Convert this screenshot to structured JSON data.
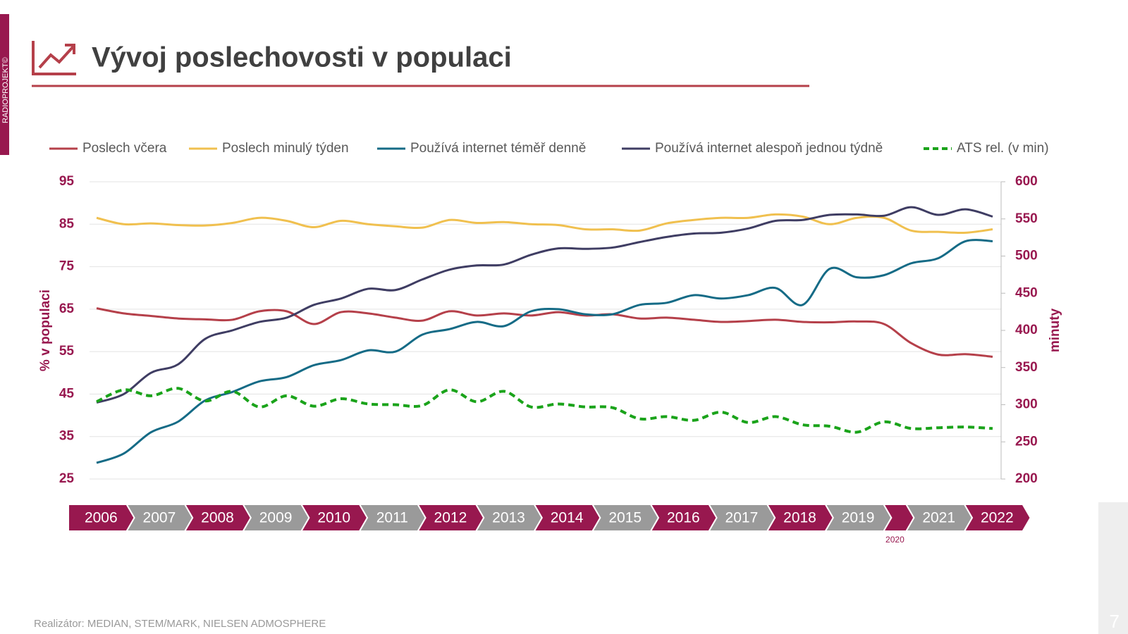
{
  "header": {
    "title": "Vývoj poslechovosti v populaci",
    "brand": "RADIOPROJEKT©",
    "page": "7"
  },
  "footer": "Realizátor: MEDIAN, STEM/MARK, NIELSEN ADMOSPHERE",
  "chart_data": {
    "type": "line",
    "x": [
      2006,
      2006.5,
      2007,
      2007.5,
      2008,
      2008.5,
      2009,
      2009.5,
      2010,
      2010.5,
      2011,
      2011.5,
      2012,
      2012.5,
      2013,
      2013.5,
      2014,
      2014.5,
      2015,
      2015.5,
      2016,
      2016.5,
      2017,
      2017.5,
      2018,
      2018.5,
      2019,
      2019.5,
      2020,
      2020.5,
      2021,
      2021.5,
      2022,
      2022.5
    ],
    "xlim": [
      2006,
      2022.5
    ],
    "timeline": [
      "2006",
      "2007",
      "2008",
      "2009",
      "2010",
      "2011",
      "2012",
      "2013",
      "2014",
      "2015",
      "2016",
      "2017",
      "2018",
      "2019",
      null,
      "2021",
      "2022"
    ],
    "timeline_note": "2020",
    "ylabel": "% v populaci",
    "y2label": "minuty",
    "ylim": [
      25,
      95
    ],
    "yticks": [
      25,
      35,
      45,
      55,
      65,
      75,
      85,
      95
    ],
    "y2lim": [
      200,
      600
    ],
    "y2ticks": [
      200,
      250,
      300,
      350,
      400,
      450,
      500,
      550,
      600
    ],
    "grid": true,
    "series": [
      {
        "name": "Poslech včera",
        "color": "#b5404a",
        "values": [
          65.2,
          64,
          63.4,
          62.8,
          62.6,
          62.5,
          64.5,
          64.5,
          61.5,
          64.3,
          64,
          63,
          62.3,
          64.5,
          63.5,
          64,
          63.5,
          64.3,
          63.5,
          63.8,
          62.8,
          63,
          62.5,
          62,
          62.2,
          62.5,
          62,
          61.9,
          62.1,
          61.5,
          57,
          54.3,
          54.4,
          53.8
        ]
      },
      {
        "name": "Poslech minulý týden",
        "color": "#f0c04f",
        "values": [
          86.5,
          85,
          85.2,
          84.8,
          84.7,
          85.3,
          86.5,
          85.8,
          84.3,
          85.8,
          85,
          84.5,
          84.2,
          86,
          85.3,
          85.5,
          85,
          84.8,
          83.8,
          83.8,
          83.5,
          85.2,
          86,
          86.5,
          86.5,
          87.3,
          86.8,
          85,
          86.5,
          86.5,
          83.5,
          83.2,
          83,
          83.8
        ]
      },
      {
        "name": "Používá internet téměř denně",
        "color": "#156b86",
        "values": [
          28.8,
          31,
          36,
          38.5,
          43.5,
          45.5,
          48,
          49,
          51.8,
          53,
          55.3,
          55,
          59,
          60.3,
          62,
          61,
          64.5,
          65,
          63.8,
          63.8,
          66,
          66.5,
          68.3,
          67.5,
          68.3,
          70,
          66,
          74.5,
          72.5,
          73,
          75.8,
          77,
          81,
          81
        ]
      },
      {
        "name": "Používá internet alespoň jednou týdně",
        "color": "#3f3d63",
        "values": [
          43,
          45,
          50,
          52,
          58,
          60,
          62,
          63,
          66,
          67.5,
          69.8,
          69.5,
          72,
          74.3,
          75.3,
          75.5,
          77.8,
          79.3,
          79.2,
          79.5,
          80.8,
          82,
          82.8,
          83,
          84,
          85.8,
          86,
          87.2,
          87.3,
          87,
          89,
          87.2,
          88.5,
          86.8
        ]
      },
      {
        "name": "ATS rel. (v min)",
        "color": "#1aa31a",
        "dashed": true,
        "axis": "y2",
        "values": [
          304,
          320,
          312,
          322,
          305,
          318,
          297,
          312,
          298,
          308,
          301,
          300,
          299,
          320,
          304,
          318,
          297,
          301,
          297,
          296,
          281,
          284,
          279,
          290,
          276,
          284,
          273,
          271,
          263,
          277,
          268,
          269,
          270,
          268
        ]
      }
    ]
  }
}
